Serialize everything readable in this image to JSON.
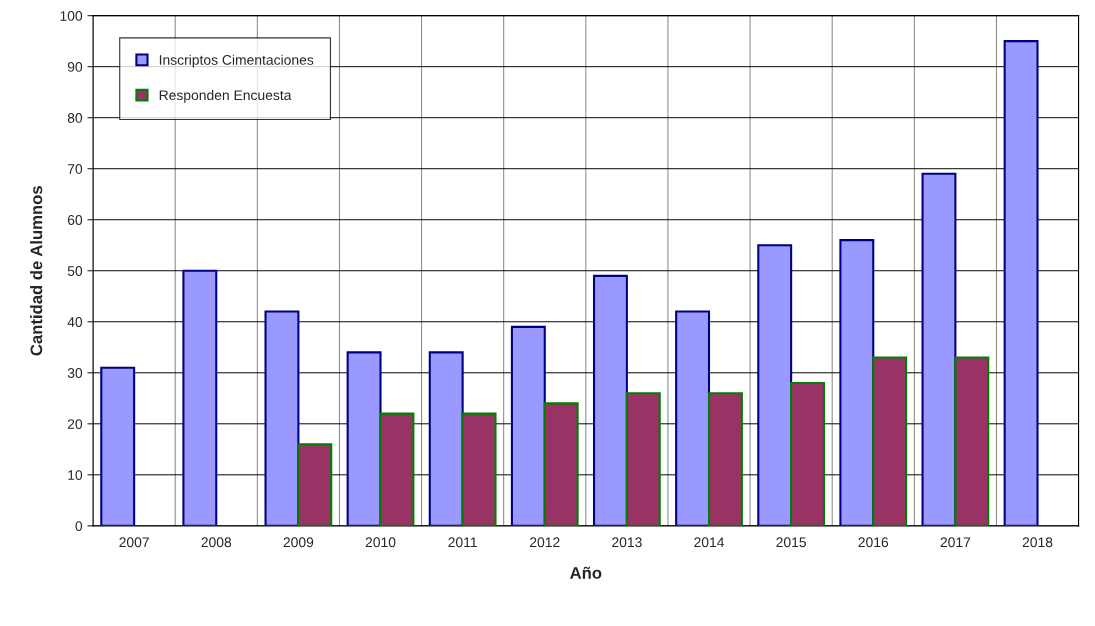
{
  "chart_data": {
    "type": "bar",
    "xlabel": "Año",
    "ylabel": "Cantidad de Alumnos",
    "categories": [
      "2007",
      "2008",
      "2009",
      "2010",
      "2011",
      "2012",
      "2013",
      "2014",
      "2015",
      "2016",
      "2017",
      "2018"
    ],
    "series": [
      {
        "name": "Inscriptos Cimentaciones",
        "color": "#9999ff",
        "values": [
          31,
          50,
          42,
          34,
          34,
          39,
          49,
          42,
          55,
          56,
          69,
          95
        ]
      },
      {
        "name": "Responden Encuesta",
        "color": "#993366",
        "values": [
          null,
          null,
          16,
          22,
          22,
          24,
          26,
          26,
          28,
          33,
          33,
          null
        ]
      }
    ],
    "ylim": [
      0,
      100
    ],
    "yticks": [
      0,
      10,
      20,
      30,
      40,
      50,
      60,
      70,
      80,
      90,
      100
    ],
    "grid": true,
    "legend": "top left"
  }
}
